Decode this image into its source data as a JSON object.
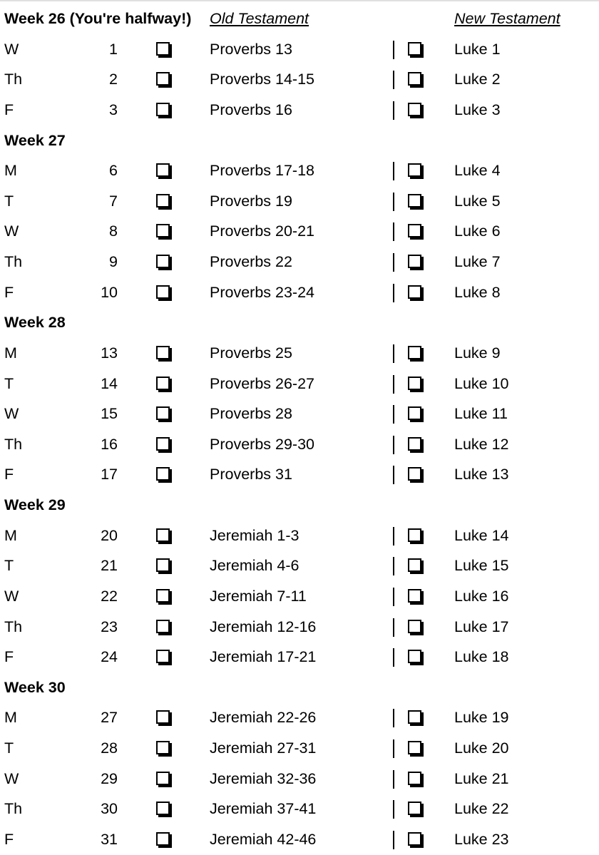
{
  "header": {
    "week_title": "Week 26 (You're halfway!)",
    "ot_label": "Old Testament",
    "nt_label": "New Testament"
  },
  "weeks": [
    {
      "title": "",
      "days": [
        {
          "day": "W",
          "num": "1",
          "ot": "Proverbs 13",
          "nt": "Luke 1"
        },
        {
          "day": "Th",
          "num": "2",
          "ot": "Proverbs 14-15",
          "nt": "Luke 2"
        },
        {
          "day": "F",
          "num": "3",
          "ot": "Proverbs 16",
          "nt": "Luke 3"
        }
      ]
    },
    {
      "title": "Week 27",
      "days": [
        {
          "day": "M",
          "num": "6",
          "ot": "Proverbs 17-18",
          "nt": "Luke 4"
        },
        {
          "day": "T",
          "num": "7",
          "ot": "Proverbs 19",
          "nt": "Luke 5"
        },
        {
          "day": "W",
          "num": "8",
          "ot": "Proverbs 20-21",
          "nt": "Luke 6"
        },
        {
          "day": "Th",
          "num": "9",
          "ot": "Proverbs 22",
          "nt": "Luke 7"
        },
        {
          "day": "F",
          "num": "10",
          "ot": "Proverbs 23-24",
          "nt": "Luke 8"
        }
      ]
    },
    {
      "title": "Week 28",
      "days": [
        {
          "day": "M",
          "num": "13",
          "ot": "Proverbs 25",
          "nt": "Luke 9"
        },
        {
          "day": "T",
          "num": "14",
          "ot": "Proverbs 26-27",
          "nt": "Luke 10"
        },
        {
          "day": "W",
          "num": "15",
          "ot": "Proverbs 28",
          "nt": "Luke 11"
        },
        {
          "day": "Th",
          "num": "16",
          "ot": "Proverbs 29-30",
          "nt": "Luke 12"
        },
        {
          "day": "F",
          "num": "17",
          "ot": "Proverbs 31",
          "nt": "Luke 13"
        }
      ]
    },
    {
      "title": "Week 29",
      "days": [
        {
          "day": "M",
          "num": "20",
          "ot": "Jeremiah 1-3",
          "nt": "Luke 14"
        },
        {
          "day": "T",
          "num": "21",
          "ot": "Jeremiah 4-6",
          "nt": "Luke 15"
        },
        {
          "day": "W",
          "num": "22",
          "ot": "Jeremiah 7-11",
          "nt": "Luke 16"
        },
        {
          "day": "Th",
          "num": "23",
          "ot": "Jeremiah 12-16",
          "nt": "Luke 17"
        },
        {
          "day": "F",
          "num": "24",
          "ot": "Jeremiah 17-21",
          "nt": "Luke 18"
        }
      ]
    },
    {
      "title": "Week 30",
      "days": [
        {
          "day": "M",
          "num": "27",
          "ot": "Jeremiah 22-26",
          "nt": "Luke 19"
        },
        {
          "day": "T",
          "num": "28",
          "ot": "Jeremiah 27-31",
          "nt": "Luke 20"
        },
        {
          "day": "W",
          "num": "29",
          "ot": "Jeremiah 32-36",
          "nt": "Luke 21"
        },
        {
          "day": "Th",
          "num": "30",
          "ot": "Jeremiah 37-41",
          "nt": "Luke 22"
        },
        {
          "day": "F",
          "num": "31",
          "ot": "Jeremiah 42-46",
          "nt": "Luke 23"
        }
      ]
    }
  ]
}
